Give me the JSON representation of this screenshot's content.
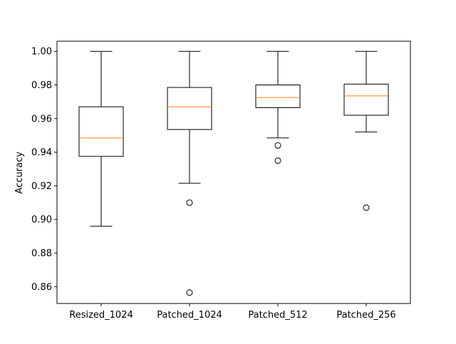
{
  "chart_data": {
    "type": "box",
    "title": "",
    "xlabel": "",
    "ylabel": "Accuracy",
    "ylim": [
      0.85,
      1.006
    ],
    "yticks": [
      0.86,
      0.88,
      0.9,
      0.92,
      0.94,
      0.96,
      0.98,
      1.0
    ],
    "ytick_labels": [
      "0.86",
      "0.88",
      "0.90",
      "0.92",
      "0.94",
      "0.96",
      "0.98",
      "1.00"
    ],
    "grid": false,
    "categories": [
      "Resized_1024",
      "Patched_1024",
      "Patched_512",
      "Patched_256"
    ],
    "boxes": [
      {
        "label": "Resized_1024",
        "whisker_low": 0.896,
        "q1": 0.9375,
        "median": 0.9485,
        "q3": 0.967,
        "whisker_high": 1.0,
        "outliers": []
      },
      {
        "label": "Patched_1024",
        "whisker_low": 0.9215,
        "q1": 0.9535,
        "median": 0.967,
        "q3": 0.9785,
        "whisker_high": 1.0,
        "outliers": [
          0.91,
          0.8565
        ]
      },
      {
        "label": "Patched_512",
        "whisker_low": 0.9485,
        "q1": 0.9665,
        "median": 0.9725,
        "q3": 0.98,
        "whisker_high": 1.0,
        "outliers": [
          0.944,
          0.935
        ]
      },
      {
        "label": "Patched_256",
        "whisker_low": 0.952,
        "q1": 0.962,
        "median": 0.9735,
        "q3": 0.9805,
        "whisker_high": 1.0,
        "outliers": [
          0.907
        ]
      }
    ],
    "colors": {
      "box": "#000000",
      "median": "#ff7f0e",
      "flier": "#000000"
    }
  }
}
